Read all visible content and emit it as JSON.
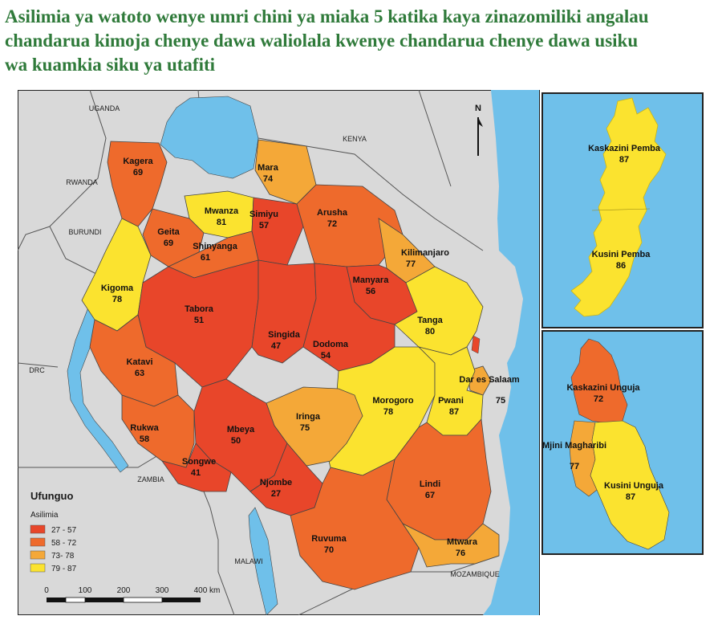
{
  "title_lines": [
    "Asilimia ya watoto wenye umri chini ya miaka 5 katika kaya zinazomiliki angalau",
    "chandarua kimoja chenye dawa waliolala kwenye chandarua chenye dawa usiku",
    "wa kuamkia siku ya utafiti"
  ],
  "colors": {
    "c1": "#e8462a",
    "c2": "#ee6a2c",
    "c3": "#f4a838",
    "c4": "#fbe32f",
    "water": "#6fc0ea",
    "land": "#d9d9d9",
    "title": "#2f7a3a"
  },
  "regions": [
    {
      "name": "Kagera",
      "value": "69"
    },
    {
      "name": "Mara",
      "value": "74"
    },
    {
      "name": "Mwanza",
      "value": "81"
    },
    {
      "name": "Simiyu",
      "value": "57"
    },
    {
      "name": "Arusha",
      "value": "72"
    },
    {
      "name": "Geita",
      "value": "69"
    },
    {
      "name": "Shinyanga",
      "value": "61"
    },
    {
      "name": "Kilimanjaro",
      "value": "77"
    },
    {
      "name": "Kigoma",
      "value": "78"
    },
    {
      "name": "Manyara",
      "value": "56"
    },
    {
      "name": "Tabora",
      "value": "51"
    },
    {
      "name": "Tanga",
      "value": "80"
    },
    {
      "name": "Singida",
      "value": "47"
    },
    {
      "name": "Dodoma",
      "value": "54"
    },
    {
      "name": "Katavi",
      "value": "63"
    },
    {
      "name": "Dar es Salaam",
      "value": "75"
    },
    {
      "name": "Morogoro",
      "value": "78"
    },
    {
      "name": "Pwani",
      "value": "87"
    },
    {
      "name": "Iringa",
      "value": "75"
    },
    {
      "name": "Rukwa",
      "value": "58"
    },
    {
      "name": "Mbeya",
      "value": "50"
    },
    {
      "name": "Songwe",
      "value": "41"
    },
    {
      "name": "Njombe",
      "value": "27"
    },
    {
      "name": "Lindi",
      "value": "67"
    },
    {
      "name": "Ruvuma",
      "value": "70"
    },
    {
      "name": "Mtwara",
      "value": "76"
    },
    {
      "name": "Kaskazini Pemba",
      "value": "87"
    },
    {
      "name": "Kusini Pemba",
      "value": "86"
    },
    {
      "name": "Kaskazini Unguja",
      "value": "72"
    },
    {
      "name": "Mjini Magharibi",
      "value": "77"
    },
    {
      "name": "Kusini Unguja",
      "value": "87"
    }
  ],
  "neighbors": {
    "uganda": "UGANDA",
    "kenya": "KENYA",
    "rwanda": "RWANDA",
    "burundi": "BURUNDI",
    "drc": "DRC",
    "zambia": "ZAMBIA",
    "malawi": "MALAWI",
    "mozambique": "MOZAMBIQUE"
  },
  "north": "N",
  "legend": {
    "title": "Ufunguo",
    "subtitle": "Asilimia",
    "items": [
      "27 - 57",
      "58 - 72",
      "73- 78",
      "79 - 87"
    ]
  },
  "scale": {
    "ticks": [
      "0",
      "100",
      "200",
      "300",
      "400 km"
    ]
  }
}
